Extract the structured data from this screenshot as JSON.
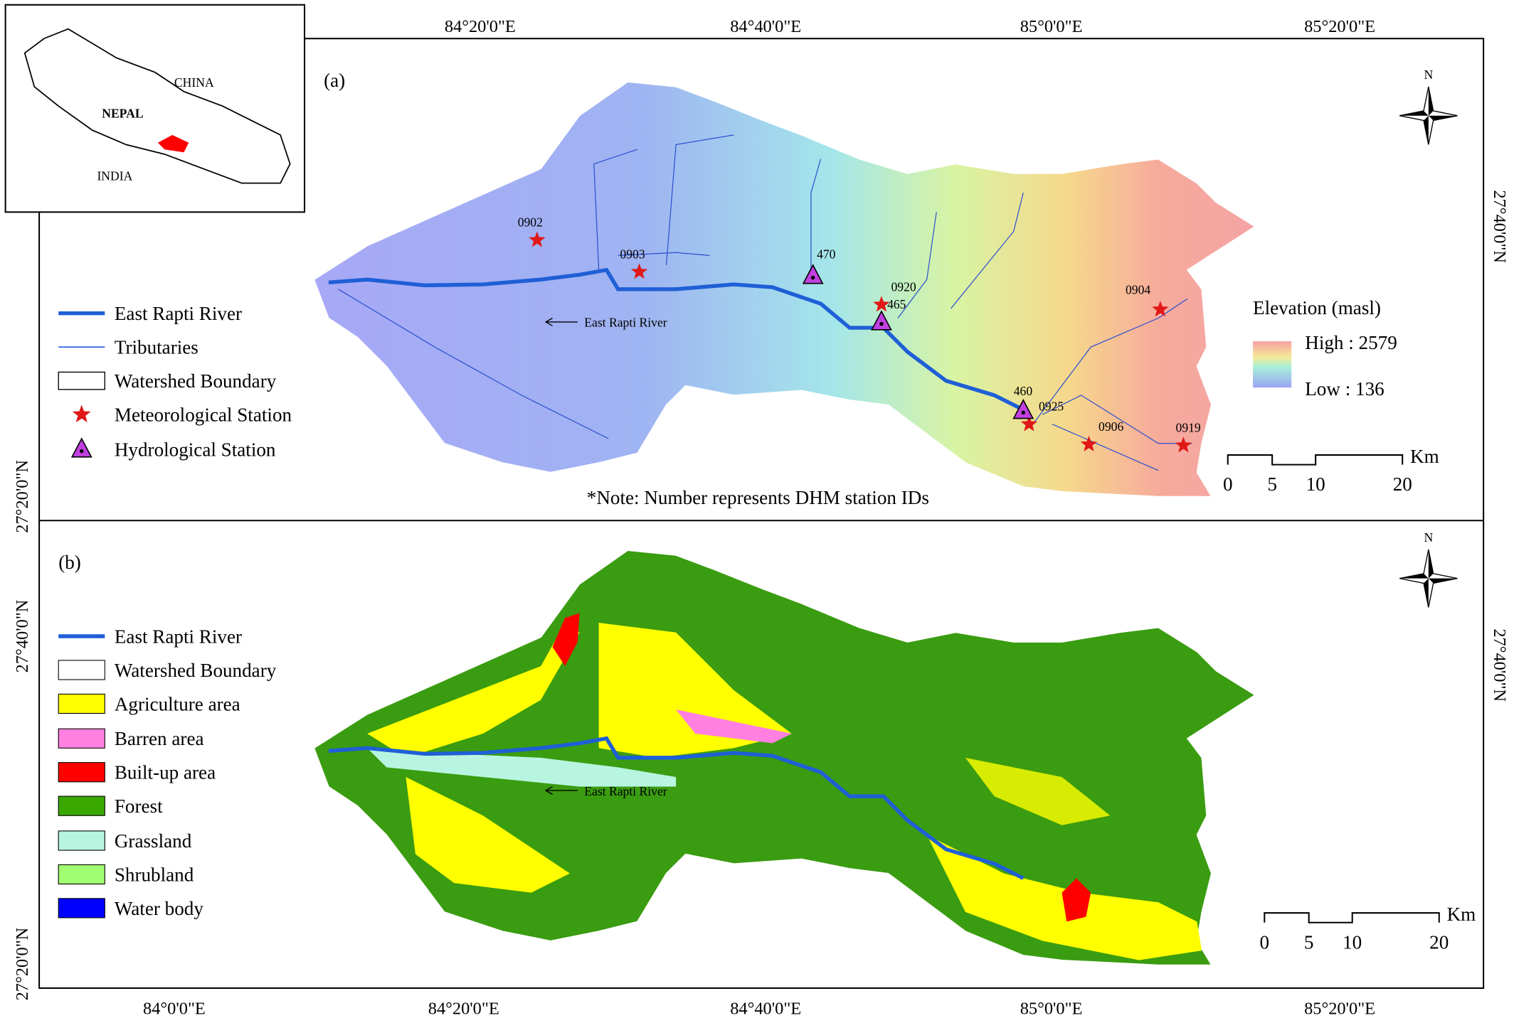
{
  "inset": {
    "china": "CHINA",
    "nepal": "NEPAL",
    "india": "INDIA"
  },
  "graticule": {
    "top": [
      "84°20'0\"E",
      "84°40'0\"E",
      "85°0'0\"E",
      "85°20'0\"E"
    ],
    "bottom": [
      "84°0'0\"E",
      "84°20'0\"E",
      "84°40'0\"E",
      "85°0'0\"E",
      "85°20'0\"E"
    ],
    "left": [
      "27°20'0\"N",
      "27°40'0\"N",
      "27°20'0\"N"
    ],
    "right": [
      "27°40'0\"N",
      "27°40'0\"N"
    ]
  },
  "panel_a": {
    "label": "(a)",
    "north": "N",
    "legend": [
      "East Rapti River",
      "Tributaries",
      "Watershed Boundary",
      "Meteorological Station",
      "Hydrological Station"
    ],
    "river_label": "East Rapti River",
    "note": "*Note: Number represents DHM station IDs",
    "elevation": {
      "title": "Elevation (masl)",
      "high": "High : 2579",
      "low": "Low : 136"
    },
    "meteorological_stations": [
      "0902",
      "0903",
      "0920",
      "0904",
      "0925",
      "0906",
      "0919"
    ],
    "hydrological_stations": [
      "470",
      "465",
      "460"
    ],
    "scale": {
      "ticks": [
        "0",
        "5",
        "10",
        "20"
      ],
      "unit": "Km"
    }
  },
  "panel_b": {
    "label": "(b)",
    "north": "N",
    "legend": [
      "East Rapti River",
      "Watershed Boundary",
      "Agriculture area",
      "Barren area",
      "Built-up area",
      "Forest",
      "Grassland",
      "Shrubland",
      "Water body"
    ],
    "river_label": "East Rapti River",
    "scale": {
      "ticks": [
        "0",
        "5",
        "10",
        "20"
      ],
      "unit": "Km"
    }
  }
}
